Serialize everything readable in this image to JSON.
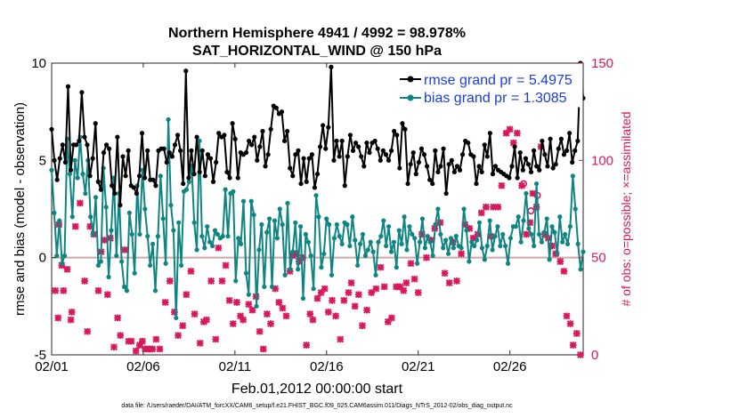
{
  "chart_data": {
    "type": "line",
    "title_line1": "Northern Hemisphere 4941 / 4992 = 98.978%",
    "title_line2": "SAT_HORIZONTAL_WIND @ 150 hPa",
    "xlabel": "Feb.01,2012 00:00:00 start",
    "ylabel_left": "rmse and bias (model - observation)",
    "ylabel_right": "# of obs: o=possible; ×=assimilated",
    "footer": "data file: /Users/raeder/DAI/ATM_forcXX/CAM6_setup/f.e21.FHIST_BGC.f09_025.CAM6assim.011/Diags_NTrS_2012-02/obs_diag_output.nc",
    "x_ticks": [
      "02/01",
      "02/06",
      "02/11",
      "02/16",
      "02/21",
      "02/26"
    ],
    "y_left_ticks": [
      "-5",
      "0",
      "5",
      "10"
    ],
    "y_right_ticks": [
      "0",
      "50",
      "100",
      "150"
    ],
    "ylim_left": [
      -5,
      10
    ],
    "ylim_right": [
      0,
      150
    ],
    "xlim_days": [
      0,
      29
    ],
    "legend": [
      {
        "label": "rmse grand pr = 5.4975",
        "color": "#000000"
      },
      {
        "label": "bias grand pr = 1.3085",
        "color": "#0e8582"
      }
    ],
    "colors": {
      "rmse": "#000000",
      "bias": "#0e8582",
      "obs": "#d8175c",
      "zero": "#c9a9a9",
      "legend_text": "#1a3fd6"
    },
    "rmse": [
      6.6,
      5.0,
      4.0,
      5.1,
      5.8,
      4.9,
      8.8,
      4.5,
      5.8,
      5.8,
      6.0,
      8.5,
      6.2,
      5.8,
      4.2,
      5.1,
      6.9,
      3.9,
      3.5,
      5.4,
      5.8,
      5.6,
      3.7,
      3.3,
      6.2,
      2.7,
      5.2,
      4.2,
      5.5,
      3.7,
      3.6,
      3.3,
      4.2,
      6.4,
      4.1,
      5.5,
      4.0,
      4.0,
      3.7,
      5.5,
      5.6,
      5.6,
      4.9,
      5.4,
      5.2,
      5.8,
      6.3,
      5.5,
      3.8,
      9.6,
      4.1,
      5.5,
      4.3,
      6.2,
      4.4,
      5.5,
      4.2,
      5.3,
      5.1,
      3.9,
      4.9,
      6.4,
      6.2,
      6.3,
      4.4,
      4.1,
      6.9,
      6.1,
      4.1,
      5.4,
      5.3,
      5.4,
      6.0,
      5.8,
      6.2,
      5.0,
      5.7,
      6.5,
      4.7,
      5.3,
      6.6,
      7.8,
      7.7,
      7.4,
      7.5,
      6.0,
      6.5,
      4.6,
      4.2,
      5.3,
      5.5,
      3.8,
      5.1,
      3.9,
      5.1,
      5.3,
      3.6,
      4.3,
      5.7,
      6.8,
      5.6,
      6.7,
      9.8,
      5.0,
      6.0,
      5.2,
      6.0,
      3.7,
      5.2,
      6.3,
      5.5,
      5.9,
      5.7,
      5.2,
      4.7,
      5.9,
      5.4,
      5.9,
      6.0,
      5.6,
      5.0,
      5.5,
      5.3,
      5.0,
      5.5,
      6.5,
      6.3,
      4.6,
      6.9,
      6.6,
      3.8,
      4.8,
      5.4,
      4.3,
      4.9,
      5.6,
      5.3,
      4.7,
      4.0,
      3.8,
      5.5,
      4.4,
      4.7,
      5.6,
      3.3,
      4.8,
      5.0,
      4.4,
      4.7,
      4.5,
      5.3,
      6.0,
      5.9,
      5.3,
      5.2,
      3.8,
      4.7,
      4.4,
      5.8,
      5.2,
      6.4,
      4.3,
      4.7,
      4.5,
      4.4,
      4.3,
      4.2,
      4.1,
      4.7,
      5.7,
      4.1,
      5.4,
      4.5,
      5.1,
      4.8,
      4.4,
      5.5,
      4.7,
      4.5,
      6.0,
      5.3,
      4.7,
      6.1,
      4.6,
      4.8,
      5.6,
      6.1,
      5.3,
      5.5,
      6.4,
      4.9,
      5.5,
      6.0,
      10.0,
      8.2
    ],
    "bias": [
      4.5,
      2.3,
      0.1,
      1.9,
      -0.3,
      0.1,
      6.1,
      4.3,
      2.1,
      5.0,
      4.1,
      6.2,
      4.3,
      3.3,
      5.0,
      2.1,
      1.2,
      3.1,
      -0.4,
      -0.2,
      4.6,
      2.6,
      -1.0,
      1.4,
      4.1,
      0.1,
      3.3,
      -0.2,
      -1.5,
      -1.7,
      2.3,
      1.2,
      -0.8,
      3.7,
      1.2,
      4.5,
      2.5,
      1.1,
      -0.4,
      0.7,
      -1.7,
      1.1,
      4.2,
      2.0,
      -0.3,
      7.1,
      2.7,
      1.4,
      -3.1,
      1.8,
      -0.4,
      3.4,
      3.5,
      3.9,
      4.7,
      1.8,
      0.4,
      6.0,
      1.1,
      0.5,
      1.6,
      0.8,
      0.6,
      1.4,
      1.2,
      1.0,
      1.1,
      3.5,
      1.1,
      3.3,
      3.4,
      -1.2,
      1.0,
      0.7,
      2.9,
      -0.8,
      -1.9,
      2.9,
      2.2,
      -2.5,
      0.4,
      1.7,
      -1.5,
      1.3,
      2.0,
      -1.5,
      1.9,
      1.0,
      2.5,
      1.7,
      -0.9,
      2.8,
      -0.6,
      0.3,
      1.8,
      -0.6,
      1.6,
      -2.1,
      1.2,
      0.8,
      0.1,
      -1.6,
      3.2,
      2.1,
      -0.5,
      0.2,
      2.0,
      1.7,
      -0.9,
      1.0,
      1.7,
      1.1,
      0.7,
      1.8,
      1.7,
      0.6,
      2.1,
      0.9,
      -0.4,
      0.7,
      1.2,
      0.1,
      0.4,
      0.8,
      0.3,
      -0.9,
      0.8,
      1.1,
      1.9,
      0.6,
      1.6,
      0.3,
      0.8,
      -0.5,
      1.4,
      0.7,
      2.1,
      0.4,
      1.6,
      1.2,
      1.0,
      -0.3,
      0.8,
      2.0,
      0.5,
      1.1,
      0.8,
      0.1,
      1.7,
      2.5,
      1.2,
      0.5,
      0.9,
      0.2,
      1.0,
      0.5,
      1.1,
      0.6,
      0.5,
      2.5,
      1.4,
      -0.2,
      0.8,
      0.6,
      0.9,
      1.8,
      0.5,
      -0.1,
      0.6,
      1.9,
      0.4,
      1.1,
      1.6,
      0.6,
      1.2,
      0.6,
      -0.3,
      1.0,
      1.6,
      1.6,
      2.1,
      0.8,
      1.9,
      3.3,
      1.5,
      1.2,
      0.6,
      3.8,
      1.2,
      0.8,
      1.3,
      2.0,
      -0.1,
      1.6,
      1.3,
      0.2,
      2.1,
      0.8,
      1.2,
      0.7,
      1.6,
      4.2,
      2.5,
      0.7,
      -0.6,
      0.3
    ],
    "obs_assimilated": [
      [
        0.2,
        -1.7
      ],
      [
        0.35,
        -3.1
      ],
      [
        0.4,
        1.7
      ],
      [
        0.55,
        -0.4
      ],
      [
        0.65,
        -1.7
      ],
      [
        0.85,
        -0.6
      ],
      [
        1.05,
        -3.2
      ],
      [
        1.1,
        -2.8
      ],
      [
        1.3,
        1.6
      ],
      [
        1.55,
        2.8
      ],
      [
        1.8,
        -1.2
      ],
      [
        1.95,
        -3.8
      ],
      [
        2.1,
        1.6
      ],
      [
        2.3,
        1.2
      ],
      [
        2.55,
        -1.7
      ],
      [
        2.7,
        0.3
      ],
      [
        2.9,
        0.9
      ],
      [
        3.05,
        -1.9
      ],
      [
        3.2,
        1.0
      ],
      [
        3.4,
        -4.6
      ],
      [
        3.6,
        -3.1
      ],
      [
        3.75,
        -4.0
      ],
      [
        4.0,
        0.4
      ],
      [
        4.2,
        -4.3
      ],
      [
        4.35,
        -4.3
      ],
      [
        4.6,
        -4.8
      ],
      [
        4.8,
        -4.5
      ],
      [
        4.95,
        -4.3
      ],
      [
        5.1,
        -4.7
      ],
      [
        5.3,
        -4.7
      ],
      [
        5.5,
        -4.7
      ],
      [
        5.7,
        -4.2
      ],
      [
        5.9,
        -4.7
      ],
      [
        6.2,
        -2.3
      ],
      [
        6.45,
        -1.2
      ],
      [
        6.7,
        -2.8
      ],
      [
        6.9,
        -4.0
      ],
      [
        7.15,
        -3.5
      ],
      [
        7.35,
        -1.9
      ],
      [
        7.6,
        -0.7
      ],
      [
        7.8,
        -2.9
      ],
      [
        8.1,
        -4.4
      ],
      [
        8.3,
        -3.3
      ],
      [
        8.45,
        -3.2
      ],
      [
        8.7,
        -1.2
      ],
      [
        8.95,
        -4.2
      ],
      [
        9.1,
        0.5
      ],
      [
        9.3,
        -1.2
      ],
      [
        9.5,
        -0.4
      ],
      [
        9.7,
        -2.2
      ],
      [
        9.9,
        -3.4
      ],
      [
        10.1,
        -2.3
      ],
      [
        10.3,
        -3.0
      ],
      [
        10.45,
        -3.2
      ],
      [
        10.75,
        -2.4
      ],
      [
        10.95,
        -2.7
      ],
      [
        11.15,
        -2.0
      ],
      [
        11.35,
        -3.8
      ],
      [
        11.55,
        -4.7
      ],
      [
        11.75,
        -2.9
      ],
      [
        11.95,
        -3.4
      ],
      [
        12.2,
        -1.6
      ],
      [
        12.4,
        -2.3
      ],
      [
        12.6,
        -2.6
      ],
      [
        12.8,
        -3.0
      ],
      [
        13.0,
        -0.7
      ],
      [
        13.15,
        0.1
      ],
      [
        13.3,
        0.2
      ],
      [
        13.5,
        -0.2
      ],
      [
        13.7,
        0.0
      ],
      [
        13.9,
        -4.5
      ],
      [
        14.1,
        -2.9
      ],
      [
        14.25,
        -3.2
      ],
      [
        14.5,
        -2.1
      ],
      [
        14.7,
        -1.8
      ],
      [
        14.9,
        -1.6
      ],
      [
        15.1,
        -2.8
      ],
      [
        15.3,
        -2.2
      ],
      [
        15.5,
        -3.0
      ],
      [
        15.75,
        -4.2
      ],
      [
        15.95,
        -2.2
      ],
      [
        16.2,
        -1.8
      ],
      [
        16.35,
        -1.3
      ],
      [
        16.55,
        -2.5
      ],
      [
        16.75,
        -1.9
      ],
      [
        16.95,
        -3.5
      ],
      [
        17.2,
        -2.7
      ],
      [
        17.45,
        -1.8
      ],
      [
        17.7,
        -1.6
      ],
      [
        17.95,
        -0.5
      ],
      [
        18.15,
        -1.5
      ],
      [
        18.35,
        -3.3
      ],
      [
        18.55,
        -3.1
      ],
      [
        18.8,
        -1.5
      ],
      [
        19.0,
        -1.5
      ],
      [
        19.2,
        -1.7
      ],
      [
        19.35,
        -1.3
      ],
      [
        19.6,
        -0.3
      ],
      [
        19.8,
        -1.1
      ],
      [
        20.0,
        -1.8
      ],
      [
        20.2,
        1.2
      ],
      [
        20.45,
        0.0
      ],
      [
        20.7,
        0.9
      ],
      [
        20.9,
        1.5
      ],
      [
        21.2,
        1.8
      ],
      [
        21.45,
        -0.8
      ],
      [
        21.7,
        -1.3
      ],
      [
        21.9,
        0.8
      ],
      [
        22.1,
        -1.2
      ],
      [
        22.35,
        0.2
      ],
      [
        22.55,
        1.7
      ],
      [
        22.8,
        1.5
      ],
      [
        23.0,
        1.0
      ],
      [
        23.25,
        1.2
      ],
      [
        23.45,
        2.3
      ],
      [
        23.7,
        2.6
      ],
      [
        23.95,
        1.1
      ],
      [
        24.1,
        2.6
      ],
      [
        24.35,
        2.6
      ],
      [
        24.55,
        3.7
      ],
      [
        24.8,
        6.4
      ],
      [
        25.0,
        6.6
      ],
      [
        25.2,
        5.9
      ],
      [
        25.4,
        6.4
      ],
      [
        25.65,
        3.7
      ],
      [
        25.9,
        1.2
      ],
      [
        26.1,
        1.8
      ],
      [
        26.25,
        3.3
      ],
      [
        26.45,
        2.6
      ],
      [
        26.7,
        5.7
      ],
      [
        26.9,
        1.2
      ],
      [
        27.1,
        1.0
      ],
      [
        27.3,
        0.6
      ],
      [
        27.5,
        0.2
      ],
      [
        27.75,
        -0.2
      ],
      [
        27.95,
        -0.7
      ],
      [
        28.1,
        -3.0
      ],
      [
        28.3,
        -3.4
      ],
      [
        28.45,
        -4.5
      ],
      [
        28.65,
        -3.9
      ],
      [
        28.85,
        -5.0
      ]
    ],
    "obs_possible": [
      [
        25.75,
        3.8
      ],
      [
        26.15,
        2.4
      ],
      [
        26.5,
        3.2
      ]
    ]
  }
}
